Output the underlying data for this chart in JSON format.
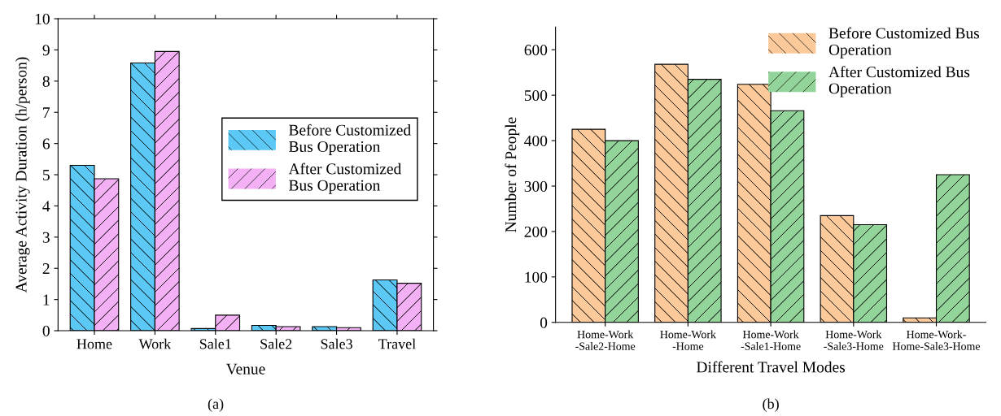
{
  "chart_data": [
    {
      "type": "bar",
      "xlabel": "Venue",
      "ylabel": "Average Activity Duration (h/person)",
      "categories": [
        "Home",
        "Work",
        "Sale1",
        "Sale2",
        "Sale3",
        "Travel"
      ],
      "series": [
        {
          "name": "Before Customized\nBus Operation",
          "color": "#5bc8f5",
          "values": [
            5.3,
            8.58,
            0.07,
            0.17,
            0.13,
            1.63
          ]
        },
        {
          "name": "After Customized\nBus Operation",
          "color": "#f4b0f4",
          "values": [
            4.87,
            8.95,
            0.5,
            0.13,
            0.1,
            1.52
          ]
        }
      ],
      "ylim": [
        0,
        10
      ],
      "yticks": [
        0,
        1,
        2,
        3,
        4,
        5,
        6,
        7,
        8,
        9,
        10
      ],
      "legend": "center right",
      "grid": false,
      "annotations": [
        "(a)"
      ]
    },
    {
      "type": "bar",
      "xlabel": "Different Travel Modes",
      "ylabel": "Number of People",
      "categories": [
        "Home-Work\n-Sale2-Home",
        "Home-Work\n-Home",
        "Home-Work\n-Sale1-Home",
        "Home-Work\n-Sale3-Home",
        "Home-Work-\nHome-Sale3-Home"
      ],
      "series": [
        {
          "name": "Before Customized Bus\nOperation",
          "color": "#fcc99a",
          "values": [
            425,
            568,
            524,
            235,
            10
          ]
        },
        {
          "name": "After Customized Bus\nOperation",
          "color": "#93d49a",
          "values": [
            400,
            535,
            466,
            215,
            325
          ]
        }
      ],
      "ylim": [
        0,
        650
      ],
      "yticks": [
        0,
        100,
        200,
        300,
        400,
        500,
        600
      ],
      "legend": "top right",
      "grid": false,
      "annotations": [
        "(b)"
      ]
    }
  ]
}
